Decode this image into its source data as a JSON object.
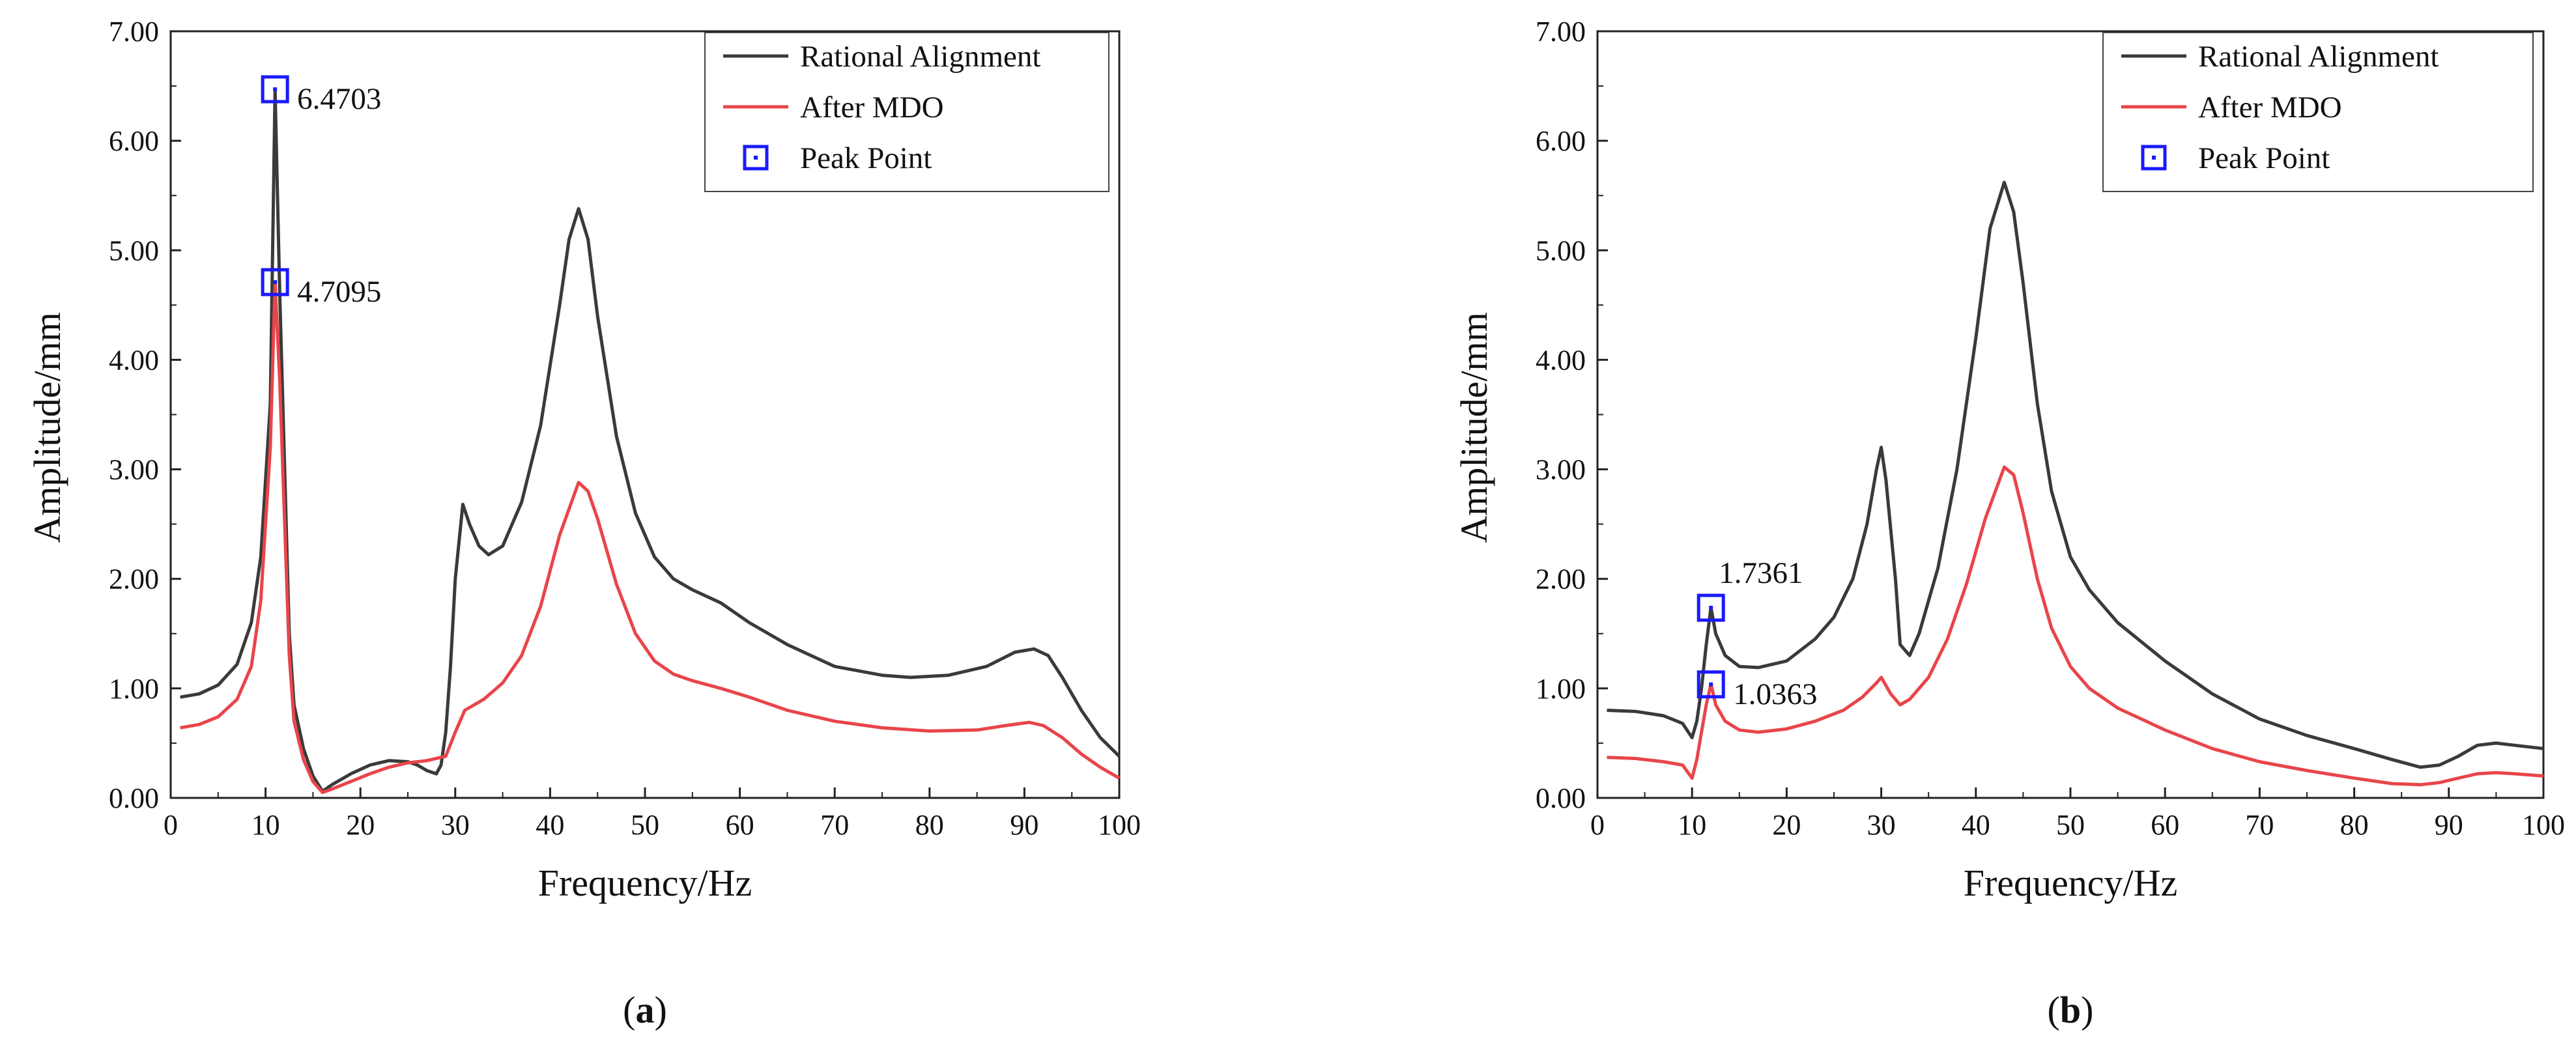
{
  "chart_data": [
    {
      "type": "line",
      "panel": "a",
      "panel_label_prefix": "(",
      "panel_label_letter": "a",
      "panel_label_suffix": ")",
      "xlabel": "Frequency/Hz",
      "ylabel": "Amplitude/mm",
      "xlim": [
        0,
        100
      ],
      "ylim": [
        0,
        7
      ],
      "xticks": [
        "0",
        "10",
        "20",
        "30",
        "40",
        "50",
        "60",
        "70",
        "80",
        "90",
        "100"
      ],
      "yticks": [
        "0.00",
        "1.00",
        "2.00",
        "3.00",
        "4.00",
        "5.00",
        "6.00",
        "7.00"
      ],
      "grid": false,
      "legend_position": "top-right",
      "series": [
        {
          "name": "Rational Alignment",
          "color": "#3a3a3a",
          "points": [
            [
              1,
              0.92
            ],
            [
              3,
              0.95
            ],
            [
              5,
              1.03
            ],
            [
              7,
              1.22
            ],
            [
              8.5,
              1.6
            ],
            [
              9.5,
              2.2
            ],
            [
              10.5,
              3.6
            ],
            [
              11,
              6.47
            ],
            [
              11.5,
              4.6
            ],
            [
              12.5,
              1.5
            ],
            [
              13,
              0.85
            ],
            [
              14,
              0.45
            ],
            [
              15,
              0.2
            ],
            [
              16,
              0.06
            ],
            [
              17,
              0.12
            ],
            [
              19,
              0.22
            ],
            [
              21,
              0.3
            ],
            [
              23,
              0.34
            ],
            [
              25,
              0.33
            ],
            [
              26,
              0.3
            ],
            [
              27,
              0.25
            ],
            [
              28,
              0.22
            ],
            [
              28.5,
              0.3
            ],
            [
              29,
              0.6
            ],
            [
              29.5,
              1.2
            ],
            [
              30,
              2.0
            ],
            [
              30.8,
              2.68
            ],
            [
              31.5,
              2.5
            ],
            [
              32.5,
              2.3
            ],
            [
              33.5,
              2.22
            ],
            [
              35,
              2.3
            ],
            [
              37,
              2.7
            ],
            [
              39,
              3.4
            ],
            [
              41,
              4.5
            ],
            [
              42,
              5.1
            ],
            [
              43,
              5.38
            ],
            [
              44,
              5.1
            ],
            [
              45,
              4.4
            ],
            [
              47,
              3.3
            ],
            [
              49,
              2.6
            ],
            [
              51,
              2.2
            ],
            [
              53,
              2.0
            ],
            [
              55,
              1.9
            ],
            [
              58,
              1.78
            ],
            [
              61,
              1.6
            ],
            [
              65,
              1.4
            ],
            [
              70,
              1.2
            ],
            [
              75,
              1.12
            ],
            [
              78,
              1.1
            ],
            [
              82,
              1.12
            ],
            [
              86,
              1.2
            ],
            [
              89,
              1.33
            ],
            [
              91,
              1.36
            ],
            [
              92.5,
              1.3
            ],
            [
              94,
              1.1
            ],
            [
              96,
              0.8
            ],
            [
              98,
              0.55
            ],
            [
              100,
              0.38
            ]
          ]
        },
        {
          "name": "After MDO",
          "color": "#e8454a",
          "points": [
            [
              1,
              0.64
            ],
            [
              3,
              0.67
            ],
            [
              5,
              0.74
            ],
            [
              7,
              0.9
            ],
            [
              8.5,
              1.2
            ],
            [
              9.5,
              1.8
            ],
            [
              10.5,
              3.2
            ],
            [
              11,
              4.71
            ],
            [
              11.5,
              3.8
            ],
            [
              12.5,
              1.3
            ],
            [
              13,
              0.7
            ],
            [
              14,
              0.35
            ],
            [
              15,
              0.15
            ],
            [
              16,
              0.05
            ],
            [
              17,
              0.08
            ],
            [
              19,
              0.15
            ],
            [
              21,
              0.22
            ],
            [
              23,
              0.28
            ],
            [
              25,
              0.32
            ],
            [
              27,
              0.34
            ],
            [
              29,
              0.38
            ],
            [
              30,
              0.6
            ],
            [
              31,
              0.8
            ],
            [
              33,
              0.9
            ],
            [
              35,
              1.05
            ],
            [
              37,
              1.3
            ],
            [
              39,
              1.75
            ],
            [
              41,
              2.4
            ],
            [
              43,
              2.88
            ],
            [
              44,
              2.8
            ],
            [
              45,
              2.55
            ],
            [
              47,
              1.95
            ],
            [
              49,
              1.5
            ],
            [
              51,
              1.25
            ],
            [
              53,
              1.13
            ],
            [
              55,
              1.07
            ],
            [
              58,
              1.0
            ],
            [
              61,
              0.92
            ],
            [
              65,
              0.8
            ],
            [
              70,
              0.7
            ],
            [
              75,
              0.64
            ],
            [
              80,
              0.61
            ],
            [
              85,
              0.62
            ],
            [
              88,
              0.66
            ],
            [
              90.5,
              0.69
            ],
            [
              92,
              0.66
            ],
            [
              94,
              0.55
            ],
            [
              96,
              0.4
            ],
            [
              98,
              0.28
            ],
            [
              100,
              0.18
            ]
          ]
        }
      ],
      "peak_points": {
        "legend_label": "Peak Point",
        "color": "#1a1aff",
        "points": [
          {
            "x": 11,
            "y": 6.4703,
            "label": "6.4703"
          },
          {
            "x": 11,
            "y": 4.7095,
            "label": "4.7095"
          }
        ]
      }
    },
    {
      "type": "line",
      "panel": "b",
      "panel_label_prefix": "(",
      "panel_label_letter": "b",
      "panel_label_suffix": ")",
      "xlabel": "Frequency/Hz",
      "ylabel": "Amplitude/mm",
      "xlim": [
        0,
        100
      ],
      "ylim": [
        0,
        7
      ],
      "xticks": [
        "0",
        "10",
        "20",
        "30",
        "40",
        "50",
        "60",
        "70",
        "80",
        "90",
        "100"
      ],
      "yticks": [
        "0.00",
        "1.00",
        "2.00",
        "3.00",
        "4.00",
        "5.00",
        "6.00",
        "7.00"
      ],
      "grid": false,
      "legend_position": "top-right",
      "series": [
        {
          "name": "Rational Alignment",
          "color": "#3a3a3a",
          "points": [
            [
              1,
              0.8
            ],
            [
              4,
              0.79
            ],
            [
              7,
              0.75
            ],
            [
              9,
              0.68
            ],
            [
              10,
              0.55
            ],
            [
              10.5,
              0.7
            ],
            [
              11,
              1.0
            ],
            [
              11.5,
              1.4
            ],
            [
              12,
              1.74
            ],
            [
              12.5,
              1.5
            ],
            [
              13.5,
              1.3
            ],
            [
              15,
              1.2
            ],
            [
              17,
              1.19
            ],
            [
              20,
              1.25
            ],
            [
              23,
              1.45
            ],
            [
              25,
              1.65
            ],
            [
              27,
              2.0
            ],
            [
              28.5,
              2.5
            ],
            [
              29.5,
              3.0
            ],
            [
              30,
              3.2
            ],
            [
              30.5,
              2.9
            ],
            [
              31.5,
              2.0
            ],
            [
              32,
              1.4
            ],
            [
              33,
              1.3
            ],
            [
              34,
              1.5
            ],
            [
              36,
              2.1
            ],
            [
              38,
              3.0
            ],
            [
              40,
              4.2
            ],
            [
              41.5,
              5.2
            ],
            [
              43,
              5.62
            ],
            [
              44,
              5.35
            ],
            [
              45,
              4.7
            ],
            [
              46.5,
              3.6
            ],
            [
              48,
              2.8
            ],
            [
              50,
              2.2
            ],
            [
              52,
              1.9
            ],
            [
              55,
              1.6
            ],
            [
              60,
              1.25
            ],
            [
              65,
              0.95
            ],
            [
              70,
              0.72
            ],
            [
              75,
              0.57
            ],
            [
              80,
              0.45
            ],
            [
              84,
              0.35
            ],
            [
              87,
              0.28
            ],
            [
              89,
              0.3
            ],
            [
              91,
              0.38
            ],
            [
              93,
              0.48
            ],
            [
              95,
              0.5
            ],
            [
              97,
              0.48
            ],
            [
              100,
              0.45
            ]
          ]
        },
        {
          "name": "After MDO",
          "color": "#e8454a",
          "points": [
            [
              1,
              0.37
            ],
            [
              4,
              0.36
            ],
            [
              7,
              0.33
            ],
            [
              9,
              0.3
            ],
            [
              10,
              0.18
            ],
            [
              10.5,
              0.35
            ],
            [
              11,
              0.6
            ],
            [
              11.5,
              0.85
            ],
            [
              12,
              1.04
            ],
            [
              12.5,
              0.85
            ],
            [
              13.5,
              0.7
            ],
            [
              15,
              0.62
            ],
            [
              17,
              0.6
            ],
            [
              20,
              0.63
            ],
            [
              23,
              0.7
            ],
            [
              26,
              0.8
            ],
            [
              28,
              0.92
            ],
            [
              29.5,
              1.05
            ],
            [
              30,
              1.1
            ],
            [
              31,
              0.95
            ],
            [
              32,
              0.85
            ],
            [
              33,
              0.9
            ],
            [
              35,
              1.1
            ],
            [
              37,
              1.45
            ],
            [
              39,
              1.95
            ],
            [
              41,
              2.55
            ],
            [
              43,
              3.02
            ],
            [
              44,
              2.95
            ],
            [
              45,
              2.6
            ],
            [
              46.5,
              2.0
            ],
            [
              48,
              1.55
            ],
            [
              50,
              1.2
            ],
            [
              52,
              1.0
            ],
            [
              55,
              0.82
            ],
            [
              60,
              0.62
            ],
            [
              65,
              0.45
            ],
            [
              70,
              0.33
            ],
            [
              75,
              0.25
            ],
            [
              80,
              0.18
            ],
            [
              84,
              0.13
            ],
            [
              87,
              0.12
            ],
            [
              89,
              0.14
            ],
            [
              91,
              0.18
            ],
            [
              93,
              0.22
            ],
            [
              95,
              0.23
            ],
            [
              97,
              0.22
            ],
            [
              100,
              0.2
            ]
          ]
        }
      ],
      "peak_points": {
        "legend_label": "Peak Point",
        "color": "#1a1aff",
        "points": [
          {
            "x": 12,
            "y": 1.7361,
            "label": "1.7361"
          },
          {
            "x": 12,
            "y": 1.0363,
            "label": "1.0363"
          }
        ]
      }
    }
  ]
}
